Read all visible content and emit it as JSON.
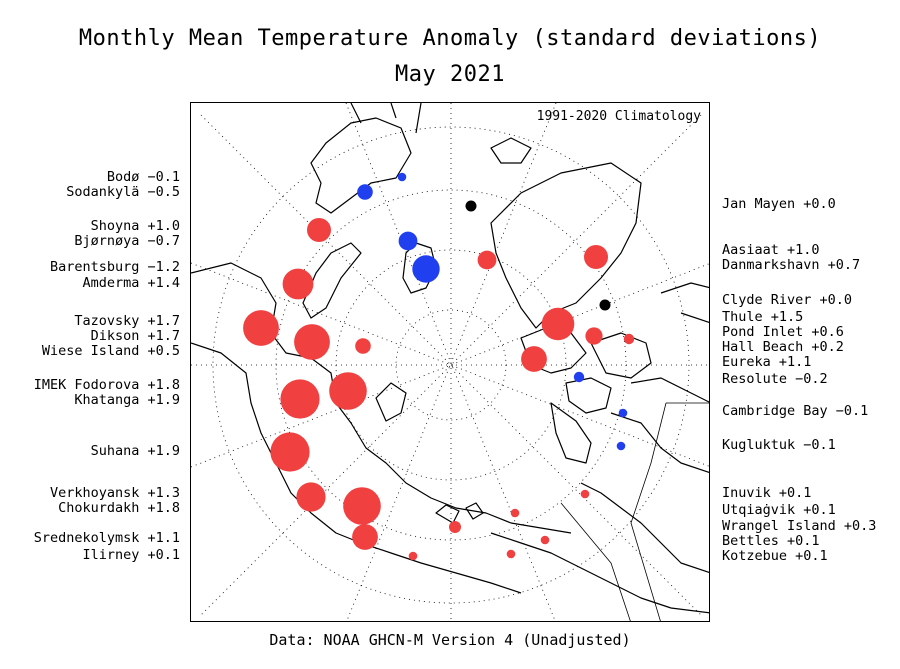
{
  "title": "Monthly Mean Temperature Anomaly (standard deviations)",
  "subtitle": "May 2021",
  "climatology_note": "1991-2020 Climatology",
  "footer": "Data: NOAA GHCN-M Version 4 (Unadjusted)",
  "colors": {
    "positive": "#f04040",
    "negative": "#2040f0",
    "zero": "#000000",
    "coast": "#000000",
    "grid": "#000000"
  },
  "stations": [
    {
      "name": "Bodø",
      "value": "-0.1",
      "side": "left",
      "sign": "neg",
      "mag": 0.1
    },
    {
      "name": "Sodankylä",
      "value": "-0.5",
      "side": "left",
      "sign": "neg",
      "mag": 0.5
    },
    {
      "name": "Shoyna",
      "value": "+1.0",
      "side": "left",
      "sign": "pos",
      "mag": 1.0
    },
    {
      "name": "Bjørnøya",
      "value": "-0.7",
      "side": "left",
      "sign": "neg",
      "mag": 0.7
    },
    {
      "name": "Barentsburg",
      "value": "-1.2",
      "side": "left",
      "sign": "neg",
      "mag": 1.2
    },
    {
      "name": "Amderma",
      "value": "+1.4",
      "side": "left",
      "sign": "pos",
      "mag": 1.4
    },
    {
      "name": "Tazovsky",
      "value": "+1.7",
      "side": "left",
      "sign": "pos",
      "mag": 1.7
    },
    {
      "name": "Dikson",
      "value": "+1.7",
      "side": "left",
      "sign": "pos",
      "mag": 1.7
    },
    {
      "name": "Wiese Island",
      "value": "+0.5",
      "side": "left",
      "sign": "pos",
      "mag": 0.5
    },
    {
      "name": "IMEK Fodorova",
      "value": "+1.8",
      "side": "left",
      "sign": "pos",
      "mag": 1.8
    },
    {
      "name": "Khatanga",
      "value": "+1.9",
      "side": "left",
      "sign": "pos",
      "mag": 1.9
    },
    {
      "name": "Suhana",
      "value": "+1.9",
      "side": "left",
      "sign": "pos",
      "mag": 1.9
    },
    {
      "name": "Verkhoyansk",
      "value": "+1.3",
      "side": "left",
      "sign": "pos",
      "mag": 1.3
    },
    {
      "name": "Chokurdakh",
      "value": "+1.8",
      "side": "left",
      "sign": "pos",
      "mag": 1.8
    },
    {
      "name": "Srednekolymsk",
      "value": "+1.1",
      "side": "left",
      "sign": "pos",
      "mag": 1.1
    },
    {
      "name": "Ilirney",
      "value": "+0.1",
      "side": "left",
      "sign": "pos",
      "mag": 0.1
    },
    {
      "name": "Jan Mayen",
      "value": "+0.0",
      "side": "right",
      "sign": "zero",
      "mag": 0.0
    },
    {
      "name": "Aasiaat",
      "value": "+1.0",
      "side": "right",
      "sign": "pos",
      "mag": 1.0
    },
    {
      "name": "Danmarkshavn",
      "value": "+0.7",
      "side": "right",
      "sign": "pos",
      "mag": 0.7
    },
    {
      "name": "Clyde River",
      "value": "+0.0",
      "side": "right",
      "sign": "zero",
      "mag": 0.0
    },
    {
      "name": "Thule",
      "value": "+1.5",
      "side": "right",
      "sign": "pos",
      "mag": 1.5
    },
    {
      "name": "Pond Inlet",
      "value": "+0.6",
      "side": "right",
      "sign": "pos",
      "mag": 0.6
    },
    {
      "name": "Hall Beach",
      "value": "+0.2",
      "side": "right",
      "sign": "pos",
      "mag": 0.2
    },
    {
      "name": "Eureka",
      "value": "+1.1",
      "side": "right",
      "sign": "pos",
      "mag": 1.1
    },
    {
      "name": "Resolute",
      "value": "-0.2",
      "side": "right",
      "sign": "neg",
      "mag": 0.2
    },
    {
      "name": "Cambridge Bay",
      "value": "-0.1",
      "side": "right",
      "sign": "neg",
      "mag": 0.1
    },
    {
      "name": "Kugluktuk",
      "value": "-0.1",
      "side": "right",
      "sign": "neg",
      "mag": 0.1
    },
    {
      "name": "Inuvik",
      "value": "+0.1",
      "side": "right",
      "sign": "pos",
      "mag": 0.1
    },
    {
      "name": "Utqiaġvik",
      "value": "+0.1",
      "side": "right",
      "sign": "pos",
      "mag": 0.1
    },
    {
      "name": "Wrangel Island",
      "value": "+0.3",
      "side": "right",
      "sign": "pos",
      "mag": 0.3
    },
    {
      "name": "Bettles",
      "value": "+0.1",
      "side": "right",
      "sign": "pos",
      "mag": 0.1
    },
    {
      "name": "Kotzebue",
      "value": "+0.1",
      "side": "right",
      "sign": "pos",
      "mag": 0.1
    }
  ]
}
